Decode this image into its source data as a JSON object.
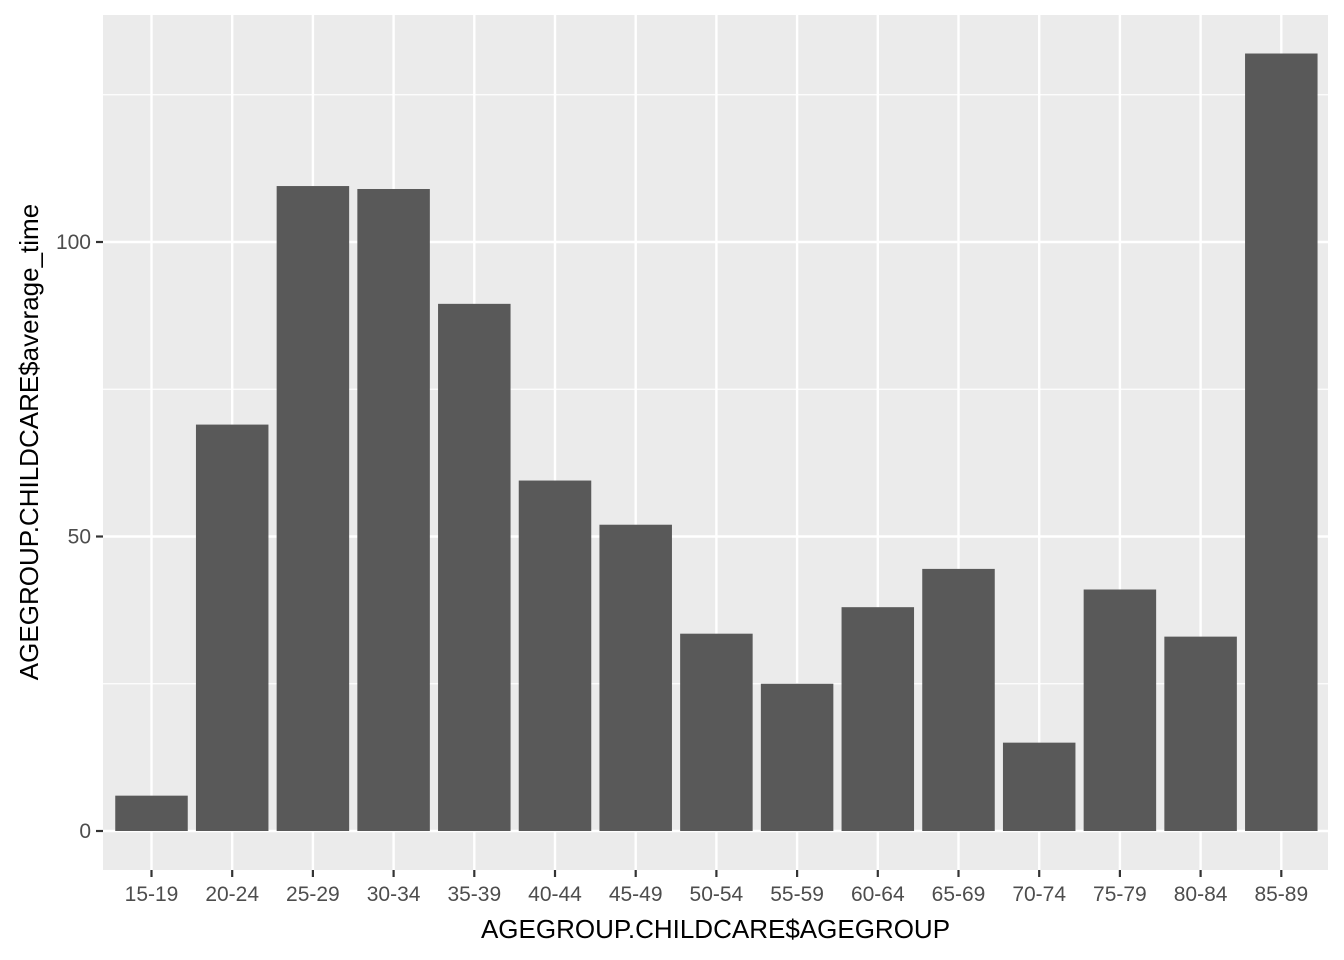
{
  "chart_data": {
    "type": "bar",
    "title": "",
    "xlabel": "AGEGROUP.CHILDCARE$AGEGROUP",
    "ylabel": "AGEGROUP.CHILDCARE$average_time",
    "categories": [
      "15-19",
      "20-24",
      "25-29",
      "30-34",
      "35-39",
      "40-44",
      "45-49",
      "50-54",
      "55-59",
      "60-64",
      "65-69",
      "70-74",
      "75-79",
      "80-84",
      "85-89"
    ],
    "values": [
      6.0,
      69.0,
      109.5,
      109.0,
      89.5,
      59.5,
      52.0,
      33.5,
      25.0,
      38.0,
      44.5,
      15.0,
      41.0,
      33.0,
      132.0
    ],
    "ylim": [
      0,
      138.5
    ],
    "yticks": [
      0,
      50,
      100
    ],
    "ytick_labels": [
      "0",
      "50",
      "100"
    ],
    "grid": true,
    "colors": {
      "panel_background": "#ebebeb",
      "grid_major": "#ffffff",
      "bar_fill": "#595959",
      "tick_text": "#4d4d4d",
      "tick_mark": "#333333",
      "axis_title": "#000000"
    }
  }
}
